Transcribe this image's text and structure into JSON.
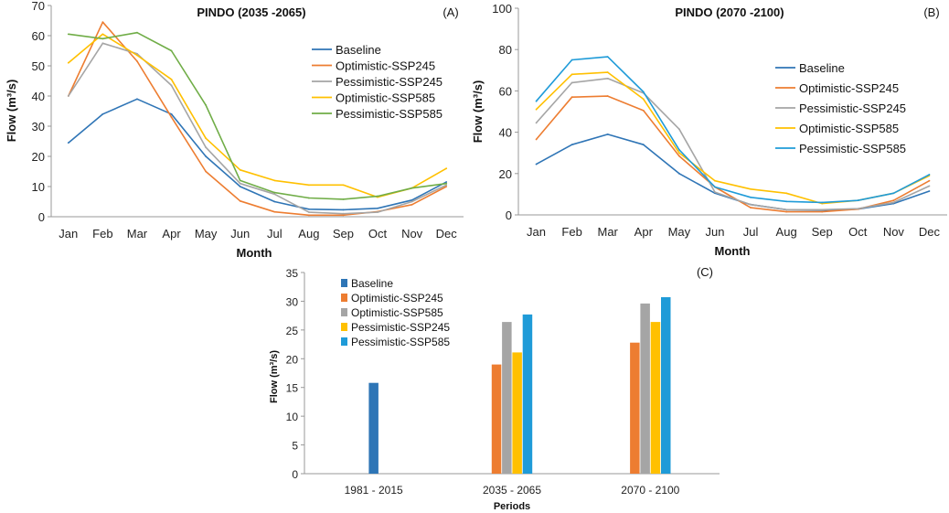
{
  "chart_data": [
    {
      "type": "line",
      "panel": "(A)",
      "title": "PINDO  (2035 -2065)",
      "xlabel": "Month",
      "ylabel": "Flow (m³/s)",
      "ylim": [
        0,
        70
      ],
      "yticks": [
        0,
        10,
        20,
        30,
        40,
        50,
        60,
        70
      ],
      "categories": [
        "Jan",
        "Feb",
        "Mar",
        "Apr",
        "May",
        "Jun",
        "Jul",
        "Aug",
        "Sep",
        "Oct",
        "Nov",
        "Dec"
      ],
      "legend_position": "right",
      "series": [
        {
          "name": "Baseline",
          "color": "#2f75b6",
          "values": [
            24.5,
            34,
            39,
            34,
            20,
            10,
            5,
            2.5,
            2.3,
            2.8,
            5.5,
            11.5
          ]
        },
        {
          "name": "Optimistic-SSP245",
          "color": "#ed7d31",
          "values": [
            40,
            64.5,
            51.5,
            33,
            15,
            5.2,
            1.6,
            0.5,
            0.5,
            1.7,
            4,
            10
          ]
        },
        {
          "name": "Pessimistic-SSP245",
          "color": "#a5a5a5",
          "values": [
            40,
            57.5,
            54,
            43.5,
            23,
            11,
            7.5,
            1.5,
            1,
            1.5,
            5,
            10.5
          ]
        },
        {
          "name": "Optimistic-SSP585",
          "color": "#ffc000",
          "values": [
            51,
            60.5,
            53.5,
            45.5,
            26,
            15.5,
            12,
            10.5,
            10.5,
            6.5,
            9.5,
            16
          ]
        },
        {
          "name": "Pessimistic-SSP585",
          "color": "#70ad47",
          "values": [
            60.5,
            59,
            61,
            55,
            37,
            12,
            8,
            6.2,
            5.8,
            6.8,
            9.5,
            11
          ]
        }
      ]
    },
    {
      "type": "line",
      "panel": "(B)",
      "title": "PINDO  (2070 -2100)",
      "xlabel": "Month",
      "ylabel": "Flow (m³/s)",
      "ylim": [
        0,
        100
      ],
      "yticks": [
        0,
        20,
        40,
        60,
        80,
        100
      ],
      "categories": [
        "Jan",
        "Feb",
        "Mar",
        "Apr",
        "May",
        "Jun",
        "Jul",
        "Aug",
        "Sep",
        "Oct",
        "Nov",
        "Dec"
      ],
      "legend_position": "right",
      "series": [
        {
          "name": "Baseline",
          "color": "#2f75b6",
          "values": [
            24.5,
            34,
            39,
            34,
            20,
            10.5,
            5,
            2.5,
            2.3,
            2.8,
            5.5,
            11.5
          ]
        },
        {
          "name": "Optimistic-SSP245",
          "color": "#ed7d31",
          "values": [
            36.5,
            57,
            57.5,
            50.5,
            28.5,
            13.5,
            3.5,
            1.5,
            1.5,
            2.8,
            7,
            16.5
          ]
        },
        {
          "name": "Pessimistic-SSP245",
          "color": "#a5a5a5",
          "values": [
            44.5,
            64,
            66,
            59,
            41.5,
            11,
            5,
            2.5,
            2.5,
            3,
            6,
            14
          ]
        },
        {
          "name": "Optimistic-SSP585",
          "color": "#ffc000",
          "values": [
            51,
            68,
            69,
            56,
            30,
            16.5,
            12.5,
            10.5,
            5.5,
            7,
            10.5,
            19
          ]
        },
        {
          "name": "Pessimistic-SSP585",
          "color": "#1f9bd8",
          "values": [
            55,
            75,
            76.5,
            59.5,
            31.5,
            13.5,
            8.5,
            6.5,
            6,
            7,
            10.5,
            19.5
          ]
        }
      ]
    },
    {
      "type": "bar",
      "panel": "(C)",
      "title": "",
      "xlabel": "Periods",
      "ylabel": "Flow (m³/s)",
      "ylim": [
        0,
        35
      ],
      "yticks": [
        0,
        5,
        10,
        15,
        20,
        25,
        30,
        35
      ],
      "categories": [
        "1981 - 2015",
        "2035 - 2065",
        "2070 - 2100"
      ],
      "legend_position": "top-left",
      "series": [
        {
          "name": "Baseline",
          "color": "#2e75b6",
          "values": [
            15.8,
            null,
            null
          ]
        },
        {
          "name": "Optimistic-SSP245",
          "color": "#ed7d31",
          "values": [
            null,
            19,
            22.8
          ]
        },
        {
          "name": "Optimistic-SSP585",
          "color": "#a5a5a5",
          "values": [
            null,
            26.4,
            29.6
          ]
        },
        {
          "name": "Pessimistic-SSP245",
          "color": "#ffc000",
          "values": [
            null,
            21.1,
            26.4
          ]
        },
        {
          "name": "Pessimistic-SSP585",
          "color": "#1f9bd8",
          "values": [
            null,
            27.7,
            30.7
          ]
        }
      ]
    }
  ]
}
